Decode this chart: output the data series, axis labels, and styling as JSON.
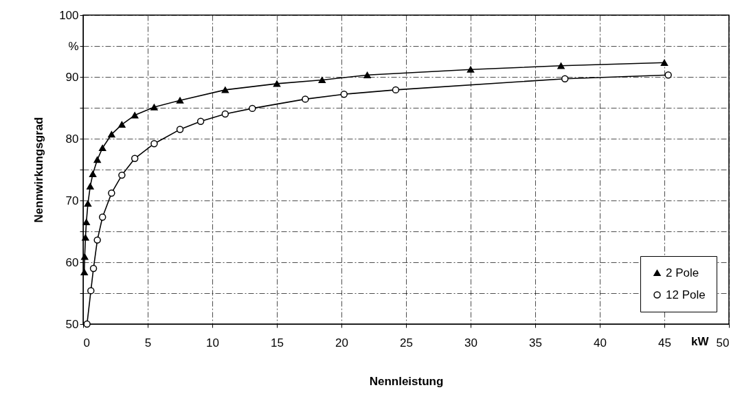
{
  "chart_data": {
    "type": "line",
    "xlabel": "Nennleistung",
    "ylabel": "Nennwirkungsgrad",
    "annotations": [
      "kW"
    ],
    "xlim": [
      0,
      50
    ],
    "xticks": [
      0,
      5,
      10,
      15,
      20,
      25,
      30,
      35,
      40,
      45,
      50
    ],
    "ylim": [
      50,
      100
    ],
    "yticks": [
      50,
      {
        "value": 55,
        "label": null
      },
      60,
      {
        "value": 65,
        "label": null
      },
      70,
      {
        "value": 75,
        "label": null
      },
      80,
      {
        "value": 85,
        "label": null
      },
      90,
      {
        "value": 95,
        "label": "%"
      },
      100
    ],
    "grid": true,
    "legend": "bottom right",
    "line_style": "solid",
    "series": [
      {
        "name": "2 Pole",
        "color": "#000000",
        "marker": "triangle",
        "x": [
          0.09,
          0.12,
          0.18,
          0.25,
          0.37,
          0.55,
          0.75,
          1.1,
          1.5,
          2.2,
          3,
          4,
          5.5,
          7.5,
          11,
          15,
          18.5,
          22,
          30,
          37,
          45
        ],
        "values": [
          58.4,
          60.9,
          64,
          66.5,
          69.5,
          72.3,
          74.3,
          76.6,
          78.5,
          80.7,
          82.3,
          83.8,
          85.1,
          86.2,
          87.9,
          88.9,
          89.5,
          90.3,
          91.2,
          91.8,
          92.3
        ]
      },
      {
        "name": "12 Pole",
        "color": "#000000",
        "marker": "circle",
        "x": [
          0.3,
          0.6,
          0.8,
          1.1,
          1.5,
          2.2,
          3,
          4,
          5.5,
          7.5,
          9.1,
          11,
          13.1,
          17.2,
          20.2,
          24.2,
          37.3,
          45.3
        ],
        "values": [
          50,
          55.4,
          59,
          63.6,
          67.3,
          71.2,
          74.1,
          76.8,
          79.2,
          81.5,
          82.8,
          84,
          84.9,
          86.4,
          87.2,
          87.9,
          89.7,
          90.3
        ]
      }
    ]
  }
}
